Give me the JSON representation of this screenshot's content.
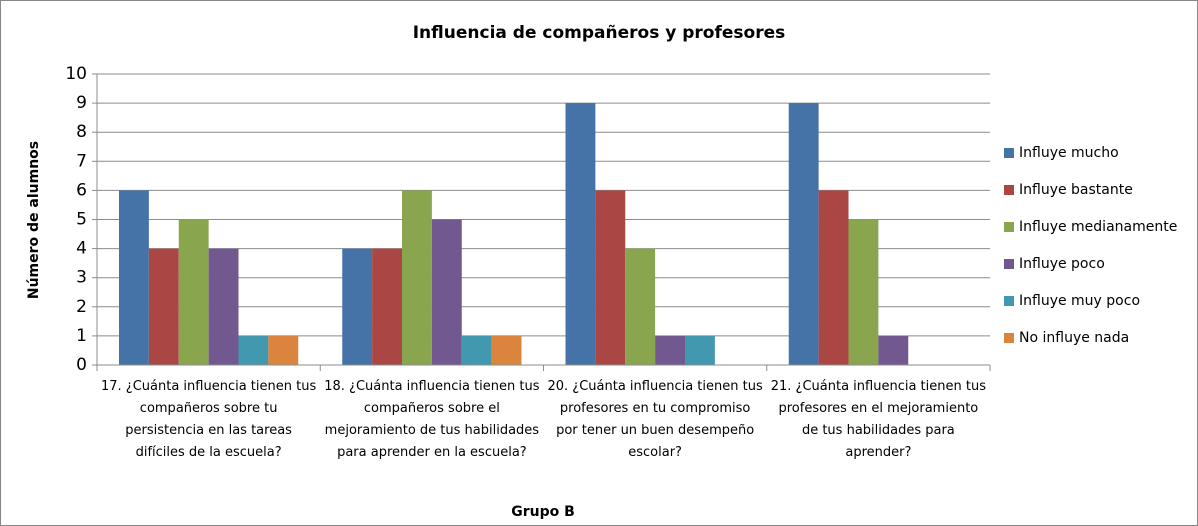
{
  "chart_data": {
    "type": "bar",
    "title": "Influencia de compañeros y profesores",
    "y_label": "Número de alumnos",
    "x_label": "Grupo B",
    "categories": [
      "17. ¿Cuánta influencia tienen tus compañeros sobre tu persistencia en las tareas difíciles de la escuela?",
      "18. ¿Cuánta influencia tienen tus compañeros sobre el mejoramiento de tus habilidades para aprender en la escuela?",
      "20. ¿Cuánta influencia tienen tus profesores en tu compromiso por tener un buen desempeño escolar?",
      "21. ¿Cuánta influencia tienen tus profesores en el mejoramiento de tus habilidades para aprender?"
    ],
    "series": [
      {
        "name": "Influye mucho",
        "color": "#4572a7",
        "values": [
          6,
          4,
          9,
          9
        ]
      },
      {
        "name": "Influye bastante",
        "color": "#aa4643",
        "values": [
          4,
          4,
          6,
          6
        ]
      },
      {
        "name": "Influye medianamente",
        "color": "#89a54e",
        "values": [
          5,
          6,
          4,
          5
        ]
      },
      {
        "name": "Influye poco",
        "color": "#71588f",
        "values": [
          4,
          5,
          1,
          1
        ]
      },
      {
        "name": "Influye muy poco",
        "color": "#4198af",
        "values": [
          1,
          1,
          1,
          0
        ]
      },
      {
        "name": "No influye nada",
        "color": "#db843d",
        "values": [
          1,
          1,
          0,
          0
        ]
      }
    ],
    "ylim": [
      0,
      10
    ],
    "yticks": [
      0,
      1,
      2,
      3,
      4,
      5,
      6,
      7,
      8,
      9,
      10
    ],
    "grid": true,
    "legend": "right"
  }
}
